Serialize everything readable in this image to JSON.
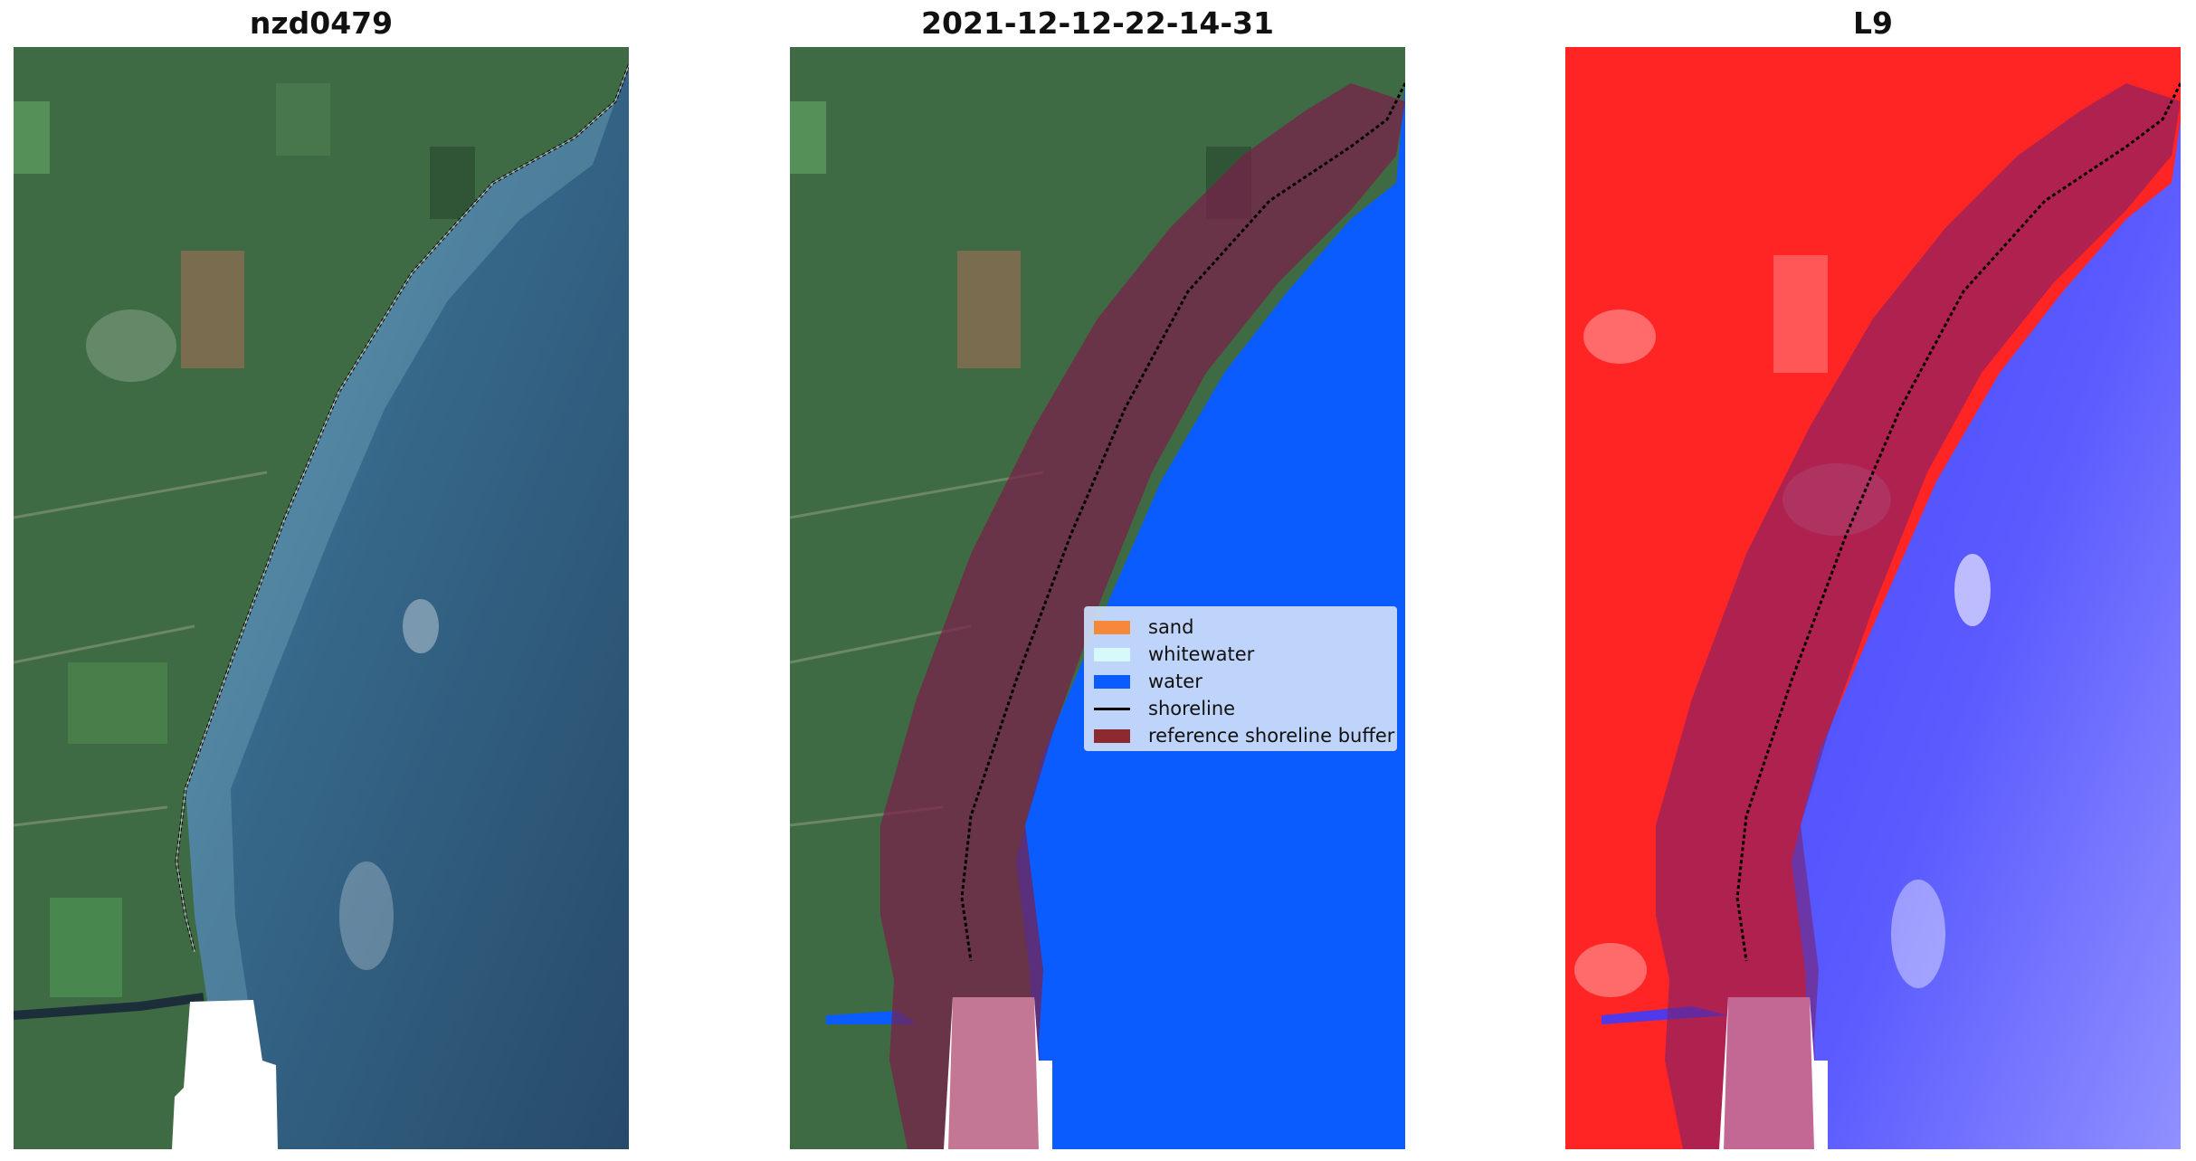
{
  "panels": [
    {
      "title": "nzd0479"
    },
    {
      "title": "2021-12-12-22-14-31"
    },
    {
      "title": "L9"
    }
  ],
  "legend": {
    "items": [
      {
        "label": "sand",
        "color": "#f5883a"
      },
      {
        "label": "whitewater",
        "color": "#d6fafa"
      },
      {
        "label": "water",
        "color": "#0a5cff"
      },
      {
        "label": "shoreline",
        "color": "#000000"
      },
      {
        "label": "reference shoreline buffer",
        "color": "#8c2a30"
      }
    ]
  },
  "colors": {
    "land": "#3f6b44",
    "ocean": "#2f5a77",
    "classified_water": "#0a5cff",
    "buffer": "#7a1f4a",
    "index_land": "#ff2222",
    "index_water": "#3c3cff"
  }
}
